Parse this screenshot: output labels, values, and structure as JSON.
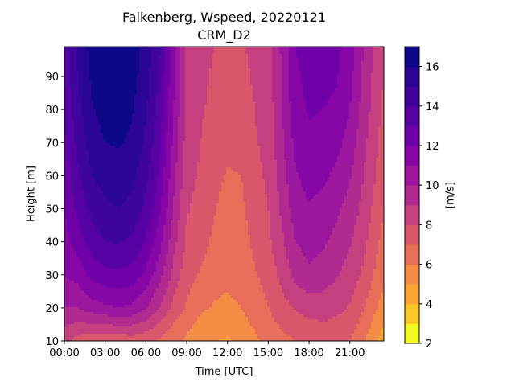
{
  "chart_data": {
    "type": "contour",
    "title": "Falkenberg, Wspeed, 20220121",
    "subtitle": "CRM_D2",
    "xlabel": "Time [UTC]",
    "ylabel": "Height [m]",
    "colorbar_label": "[m/s]",
    "xlim_hours": [
      0,
      23.5
    ],
    "ylim": [
      10,
      99
    ],
    "x_ticks": [
      {
        "hour": 0,
        "label": "00:00"
      },
      {
        "hour": 3,
        "label": "03:00"
      },
      {
        "hour": 6,
        "label": "06:00"
      },
      {
        "hour": 9,
        "label": "09:00"
      },
      {
        "hour": 12,
        "label": "12:00"
      },
      {
        "hour": 15,
        "label": "15:00"
      },
      {
        "hour": 18,
        "label": "18:00"
      },
      {
        "hour": 21,
        "label": "21:00"
      }
    ],
    "y_ticks": [
      10,
      20,
      30,
      40,
      50,
      60,
      70,
      80,
      90
    ],
    "colorbar_ticks": [
      2,
      4,
      6,
      8,
      10,
      12,
      14,
      16
    ],
    "levels": [
      2,
      3,
      4,
      5,
      6,
      7,
      8,
      9,
      10,
      11,
      12,
      13,
      14,
      15,
      16,
      17
    ],
    "colors": [
      "#f0f921",
      "#fdc827",
      "#fca636",
      "#f58c46",
      "#e76f5a",
      "#d8576b",
      "#c5407e",
      "#b12a90",
      "#9c179e",
      "#8606a6",
      "#6f00a8",
      "#5601a4",
      "#3e049c",
      "#2b0594",
      "#0d0887"
    ],
    "colormap": "plasma",
    "grid": false,
    "wind_speed_profile": {
      "hours": [
        0,
        1,
        2,
        3,
        4,
        5,
        6,
        7,
        8,
        9,
        10,
        11,
        12,
        13,
        14,
        15,
        16,
        17,
        18,
        19,
        20,
        21,
        22,
        23.5
      ],
      "heights": [
        10,
        20,
        30,
        40,
        50,
        60,
        70,
        80,
        90,
        99
      ],
      "values": [
        [
          8.2,
          10.0,
          11.0,
          11.6,
          12.0,
          12.4,
          12.8,
          13.1,
          13.4,
          13.6
        ],
        [
          7.6,
          10.0,
          11.4,
          12.5,
          13.3,
          13.9,
          14.3,
          14.7,
          15.0,
          15.2
        ],
        [
          7.3,
          10.5,
          12.3,
          13.5,
          14.3,
          15.0,
          15.5,
          15.9,
          16.2,
          16.4
        ],
        [
          7.2,
          10.8,
          12.7,
          14.0,
          14.8,
          15.4,
          16.0,
          16.4,
          16.7,
          16.9
        ],
        [
          7.3,
          11.0,
          12.8,
          14.1,
          15.0,
          15.6,
          16.1,
          16.5,
          16.8,
          17.0
        ],
        [
          7.4,
          10.8,
          12.6,
          13.8,
          14.7,
          15.3,
          15.8,
          16.1,
          16.4,
          16.6
        ],
        [
          7.2,
          10.1,
          11.7,
          12.9,
          13.7,
          14.3,
          14.8,
          15.1,
          15.4,
          15.6
        ],
        [
          6.8,
          9.0,
          10.4,
          11.4,
          12.2,
          12.8,
          13.2,
          13.6,
          13.9,
          14.1
        ],
        [
          6.2,
          7.7,
          8.7,
          9.4,
          10.0,
          10.4,
          10.8,
          11.1,
          11.4,
          11.6
        ],
        [
          5.8,
          6.9,
          7.4,
          7.8,
          8.1,
          8.3,
          8.5,
          8.7,
          8.8,
          8.9
        ],
        [
          5.2,
          6.2,
          6.9,
          7.4,
          7.7,
          7.9,
          8.0,
          8.1,
          8.2,
          8.3
        ],
        [
          5.0,
          5.9,
          6.4,
          6.8,
          7.1,
          7.3,
          7.6,
          7.8,
          7.9,
          8.0
        ],
        [
          4.9,
          5.8,
          6.2,
          6.4,
          6.6,
          6.9,
          7.3,
          7.6,
          7.8,
          7.9
        ],
        [
          5.2,
          6.0,
          6.4,
          6.6,
          6.8,
          7.0,
          7.3,
          7.6,
          7.8,
          7.9
        ],
        [
          5.8,
          6.5,
          6.9,
          7.2,
          7.5,
          7.7,
          7.9,
          8.0,
          8.1,
          8.2
        ],
        [
          6.3,
          7.0,
          7.4,
          7.8,
          8.0,
          8.2,
          8.3,
          8.4,
          8.5,
          8.5
        ],
        [
          6.7,
          7.6,
          8.3,
          8.8,
          9.2,
          9.5,
          9.8,
          10.0,
          10.1,
          10.2
        ],
        [
          7.0,
          8.1,
          9.3,
          10.0,
          10.5,
          10.9,
          11.3,
          11.6,
          11.8,
          12.0
        ],
        [
          7.1,
          8.4,
          9.8,
          10.4,
          10.9,
          11.4,
          11.8,
          12.1,
          12.3,
          12.5
        ],
        [
          7.3,
          8.5,
          9.5,
          10.2,
          10.7,
          11.2,
          11.6,
          12.0,
          12.3,
          12.5
        ],
        [
          7.2,
          8.3,
          9.1,
          9.7,
          10.2,
          10.8,
          11.3,
          11.8,
          12.1,
          12.3
        ],
        [
          7.0,
          7.9,
          8.6,
          9.1,
          9.6,
          10.1,
          10.6,
          11.0,
          11.3,
          11.5
        ],
        [
          6.1,
          7.1,
          7.8,
          8.3,
          8.7,
          9.0,
          9.3,
          9.6,
          9.8,
          10.0
        ],
        [
          4.5,
          5.5,
          6.2,
          6.6,
          7.0,
          7.3,
          7.5,
          7.7,
          7.9,
          8.0
        ]
      ]
    }
  }
}
